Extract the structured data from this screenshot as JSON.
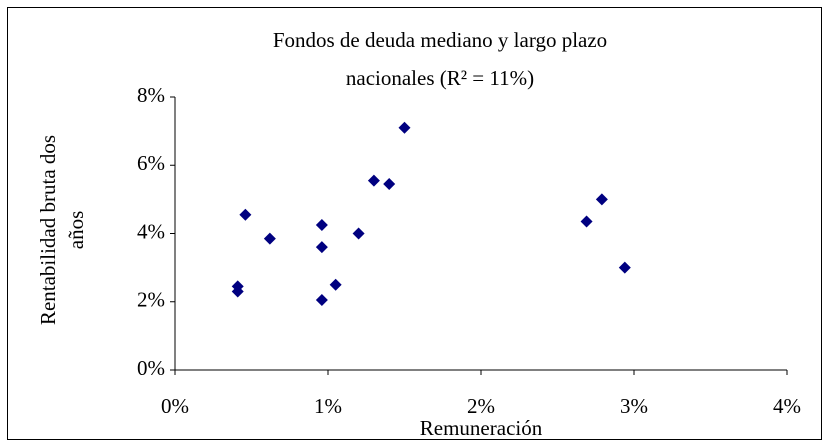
{
  "chart_data": {
    "type": "scatter",
    "title": [
      "Fondos de deuda mediano y largo plazo",
      "nacionales (R² = 11%)"
    ],
    "xlabel": "Remuneración",
    "ylabel": [
      "Rentabilidad bruta dos",
      "años"
    ],
    "color": "#000080",
    "x": [
      0.41,
      0.41,
      0.46,
      0.62,
      0.96,
      0.96,
      0.96,
      1.05,
      1.2,
      1.3,
      1.4,
      1.5,
      2.69,
      2.79,
      2.94
    ],
    "y": [
      2.45,
      2.3,
      4.55,
      3.85,
      4.25,
      3.6,
      2.05,
      2.5,
      4.0,
      5.55,
      5.45,
      7.1,
      4.35,
      5.0,
      3.0
    ],
    "xlim": [
      0,
      4
    ],
    "ylim": [
      0,
      8
    ],
    "xticks": [
      {
        "value": 0,
        "label": "0%"
      },
      {
        "value": 1,
        "label": "1%"
      },
      {
        "value": 2,
        "label": "2%"
      },
      {
        "value": 3,
        "label": "3%"
      },
      {
        "value": 4,
        "label": "4%"
      }
    ],
    "yticks": [
      {
        "value": 0,
        "label": "0%"
      },
      {
        "value": 2,
        "label": "2%"
      },
      {
        "value": 4,
        "label": "4%"
      },
      {
        "value": 6,
        "label": "6%"
      },
      {
        "value": 8,
        "label": "8%"
      }
    ]
  }
}
